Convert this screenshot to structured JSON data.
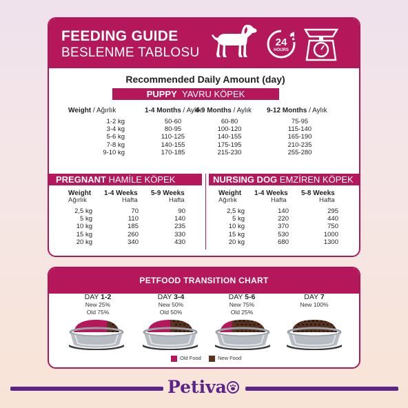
{
  "header": {
    "title": "FEEDING GUIDE",
    "subtitle": "BESLENME TABLOSU",
    "hours_number": "24",
    "hours_label": "HOURS",
    "icons": [
      "dog-icon",
      "24-hours-icon",
      "scale-icon"
    ]
  },
  "recommended": {
    "title": "Recommended Daily Amount (day)"
  },
  "puppy": {
    "title_bold": "PUPPY",
    "title_rest": "YAVRU KÖPEK",
    "col_weight_bold": "Weight",
    "col_weight_rest": " / Ağırlık",
    "col1_bold": "1-4 Months",
    "col1_rest": " / Aylık",
    "col2_bold": "4-9 Months",
    "col2_rest": " / Aylık",
    "col3_bold": "9-12 Months",
    "col3_rest": " / Aylık",
    "weights": "1-2 kg\n3-4 kg\n5-6 kg\n7-8 kg\n9-10 kg",
    "m1_4": "50-60\n80-95\n110-125\n140-155\n170-185",
    "m4_9": "60-80\n100-120\n140-155\n175-195\n215-230",
    "m9_12": "75-95\n115-140\n165-190\n210-235\n255-280"
  },
  "pregnant": {
    "title_bold": "PREGNANT",
    "title_rest": "HAMİLE KÖPEK",
    "col_weight": "Weight",
    "col_weight_sub": "Ağırlık",
    "col1": "1-4 Weeks",
    "col1_sub": "Hafta",
    "col2": "5-9 Weeks",
    "col2_sub": "Hafta",
    "weights": "2,5 kg\n5 kg\n10 kg\n15 kg\n20 kg",
    "w1_4": "70\n110\n185\n260\n340",
    "w5_9": "90\n140\n235\n330\n430"
  },
  "nursing": {
    "title_bold": "NURSING DOG",
    "title_rest": "EMZİREN KÖPEK",
    "col_weight": "Weight",
    "col_weight_sub": "Ağırlık",
    "col1": "1-4 Weeks",
    "col1_sub": "Hafta",
    "col2": "5-8 Weeks",
    "col2_sub": "Hafta",
    "weights": "2,5 kg\n5 kg\n10 kg\n15 kg\n20 kg",
    "w1_4": "140\n220\n370\n530\n680",
    "w5_8": "295\n440\n750\n1000\n1300"
  },
  "transition": {
    "title": "PETFOOD TRANSITION CHART",
    "days": [
      {
        "prefix": "DAY ",
        "num": "1-2",
        "line1": "New 25%",
        "line2": "Old 75%",
        "old_fraction": 0.75
      },
      {
        "prefix": "DAY ",
        "num": "3-4",
        "line1": "New 50%",
        "line2": "Old 50%",
        "old_fraction": 0.5
      },
      {
        "prefix": "DAY ",
        "num": "5-6",
        "line1": "New 75%",
        "line2": "Old 25%",
        "old_fraction": 0.25
      },
      {
        "prefix": "DAY ",
        "num": "7",
        "line1": "New 100%",
        "line2": "",
        "old_fraction": 0
      }
    ],
    "legend_old": "Old Food",
    "legend_new": "New Food",
    "colors": {
      "old": "#b5175b",
      "new": "#5a3220"
    }
  },
  "brand": {
    "name": "Petiva"
  },
  "colors": {
    "accent": "#b5175b",
    "brand": "#5b2587"
  }
}
